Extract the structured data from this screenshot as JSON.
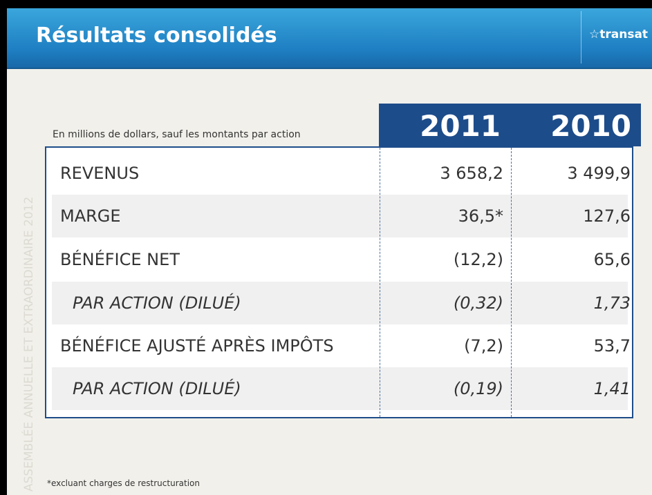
{
  "header": {
    "title": "Résultats consolidés",
    "logo": "transat"
  },
  "side_text": "ASSEMBLÉE ANNUELLE ET EXTRAORDINAIRE 2012",
  "table": {
    "caption": "En millions de dollars, sauf les montants par action",
    "columns": [
      "2011",
      "2010"
    ],
    "rows": [
      [
        "REVENUS",
        "3 658,2",
        "3 499,9"
      ],
      [
        "MARGE",
        "36,5*",
        "127,6"
      ],
      [
        "BÉNÉFICE NET",
        "(12,2)",
        "65,6"
      ],
      [
        "PAR ACTION (DILUÉ)",
        "(0,32)",
        "1,73"
      ],
      [
        "BÉNÉFICE AJUSTÉ APRÈS IMPÔTS",
        "(7,2)",
        "53,7"
      ],
      [
        "PAR ACTION (DILUÉ)",
        "(0,19)",
        "1,41"
      ]
    ]
  },
  "footnote": "*excluant charges de restructuration"
}
